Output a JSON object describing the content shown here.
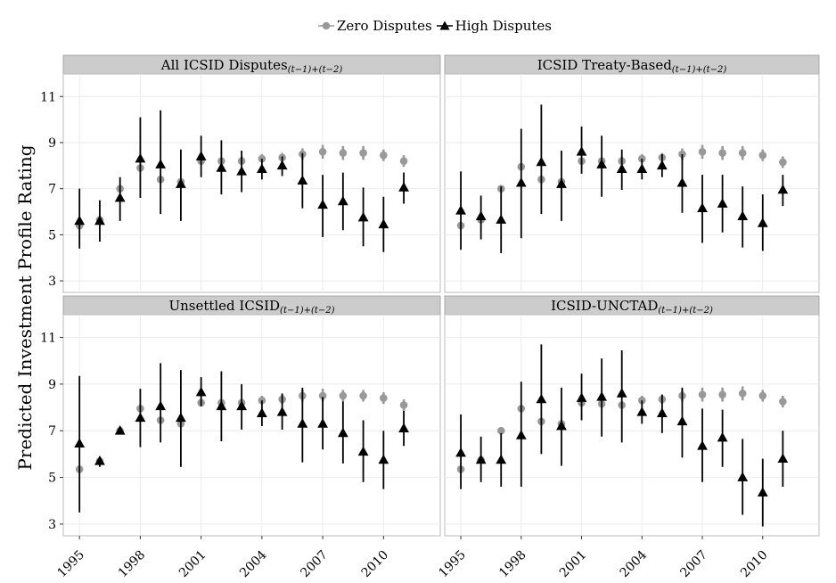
{
  "legend": {
    "zero_label": "Zero Disputes",
    "high_label": "High Disputes"
  },
  "colors": {
    "zero": "#999999",
    "high": "#000000",
    "strip_bg": "#cccccc",
    "panel_border": "#bbbbbb",
    "grid": "#ebebeb"
  },
  "ylabel": "Predicted Investment Profile Rating",
  "chart_data": {
    "type": "scatter",
    "ylim": [
      2.5,
      11.9
    ],
    "y_ticks": [
      3,
      5,
      7,
      9,
      11
    ],
    "x_range": [
      1994.2,
      2012.8
    ],
    "x_ticks": [
      1995,
      1998,
      2001,
      2004,
      2007,
      2010
    ],
    "grid": true,
    "legend_position": "top",
    "panels": [
      {
        "title": "All ICSID Disputes",
        "subscript": "(t−1)+(t−2)",
        "series": [
          {
            "name": "Zero Disputes",
            "x": [
              1995,
              1996,
              1997,
              1998,
              1999,
              2000,
              2001,
              2002,
              2003,
              2004,
              2005,
              2006,
              2007,
              2008,
              2009,
              2010,
              2011
            ],
            "y": [
              5.4,
              5.65,
              7.0,
              7.9,
              7.4,
              7.3,
              8.2,
              8.2,
              8.2,
              8.3,
              8.35,
              8.5,
              8.6,
              8.55,
              8.55,
              8.45,
              8.2
            ],
            "low": [
              5.3,
              5.55,
              6.85,
              7.75,
              7.25,
              7.15,
              8.05,
              8.05,
              8.05,
              8.15,
              8.15,
              8.25,
              8.3,
              8.25,
              8.25,
              8.2,
              7.95
            ],
            "high": [
              5.5,
              5.75,
              7.15,
              8.05,
              7.55,
              7.45,
              8.35,
              8.35,
              8.4,
              8.5,
              8.55,
              8.75,
              8.9,
              8.85,
              8.85,
              8.7,
              8.45
            ]
          },
          {
            "name": "High Disputes",
            "x": [
              1995,
              1996,
              1997,
              1998,
              1999,
              2000,
              2001,
              2002,
              2003,
              2004,
              2005,
              2006,
              2007,
              2008,
              2009,
              2010,
              2011
            ],
            "y": [
              5.6,
              5.6,
              6.6,
              8.3,
              8.05,
              7.2,
              8.4,
              7.9,
              7.75,
              7.85,
              8.0,
              7.35,
              6.3,
              6.45,
              5.75,
              5.45,
              7.05
            ],
            "low": [
              4.4,
              4.7,
              5.6,
              6.6,
              5.9,
              5.6,
              7.5,
              6.75,
              6.85,
              7.4,
              7.55,
              6.15,
              4.9,
              5.2,
              4.5,
              4.25,
              6.35
            ],
            "high": [
              7.0,
              6.5,
              7.5,
              10.1,
              10.4,
              8.7,
              9.3,
              9.1,
              8.65,
              8.3,
              8.4,
              8.55,
              7.6,
              7.7,
              7.05,
              6.65,
              7.7
            ]
          }
        ]
      },
      {
        "title": "ICSID Treaty-Based",
        "subscript": "(t−1)+(t−2)",
        "series": [
          {
            "name": "Zero Disputes",
            "x": [
              1995,
              1996,
              1997,
              1998,
              1999,
              2000,
              2001,
              2002,
              2003,
              2004,
              2005,
              2006,
              2007,
              2008,
              2009,
              2010,
              2011
            ],
            "y": [
              5.4,
              5.65,
              7.0,
              7.95,
              7.4,
              7.3,
              8.2,
              8.2,
              8.2,
              8.3,
              8.35,
              8.5,
              8.6,
              8.55,
              8.55,
              8.45,
              8.15
            ],
            "low": [
              5.3,
              5.55,
              6.85,
              7.8,
              7.25,
              7.15,
              8.05,
              8.05,
              8.05,
              8.15,
              8.15,
              8.25,
              8.3,
              8.25,
              8.25,
              8.2,
              7.9
            ],
            "high": [
              5.5,
              5.75,
              7.15,
              8.1,
              7.55,
              7.45,
              8.35,
              8.35,
              8.4,
              8.5,
              8.55,
              8.75,
              8.9,
              8.85,
              8.85,
              8.7,
              8.4
            ]
          },
          {
            "name": "High Disputes",
            "x": [
              1995,
              1996,
              1997,
              1998,
              1999,
              2000,
              2001,
              2002,
              2003,
              2004,
              2005,
              2006,
              2007,
              2008,
              2009,
              2010,
              2011
            ],
            "y": [
              6.05,
              5.8,
              5.65,
              7.25,
              8.15,
              7.2,
              8.6,
              8.05,
              7.85,
              7.85,
              8.0,
              7.25,
              6.15,
              6.35,
              5.8,
              5.5,
              6.95
            ],
            "low": [
              4.35,
              4.8,
              4.2,
              4.85,
              5.9,
              5.6,
              7.65,
              6.65,
              6.95,
              7.4,
              7.5,
              5.95,
              4.65,
              5.1,
              4.45,
              4.3,
              6.25
            ],
            "high": [
              7.75,
              6.7,
              7.1,
              9.6,
              10.65,
              8.65,
              9.7,
              9.3,
              8.7,
              8.3,
              8.5,
              8.5,
              7.6,
              7.6,
              7.1,
              6.75,
              7.6
            ]
          }
        ]
      },
      {
        "title": "Unsettled ICSID",
        "subscript": "(t−1)+(t−2)",
        "series": [
          {
            "name": "Zero Disputes",
            "x": [
              1995,
              1996,
              1997,
              1998,
              1999,
              2000,
              2001,
              2002,
              2003,
              2004,
              2005,
              2006,
              2007,
              2008,
              2009,
              2010,
              2011
            ],
            "y": [
              5.35,
              5.7,
              7.0,
              7.95,
              7.45,
              7.3,
              8.2,
              8.2,
              8.2,
              8.3,
              8.35,
              8.5,
              8.5,
              8.5,
              8.5,
              8.4,
              8.1
            ],
            "low": [
              5.25,
              5.6,
              6.85,
              7.8,
              7.3,
              7.15,
              8.05,
              8.05,
              8.05,
              8.15,
              8.15,
              8.25,
              8.25,
              8.25,
              8.25,
              8.15,
              7.85
            ],
            "high": [
              5.45,
              5.8,
              7.15,
              8.1,
              7.6,
              7.45,
              8.35,
              8.35,
              8.35,
              8.5,
              8.55,
              8.75,
              8.8,
              8.75,
              8.75,
              8.65,
              8.35
            ]
          },
          {
            "name": "High Disputes",
            "x": [
              1995,
              1996,
              1997,
              1998,
              1999,
              2000,
              2001,
              2002,
              2003,
              2004,
              2005,
              2006,
              2007,
              2008,
              2009,
              2010,
              2011
            ],
            "y": [
              6.45,
              5.7,
              7.0,
              7.55,
              8.05,
              7.55,
              8.65,
              8.05,
              8.05,
              7.75,
              7.8,
              7.3,
              7.3,
              6.9,
              6.1,
              5.75,
              7.1
            ],
            "low": [
              3.5,
              5.45,
              6.85,
              6.3,
              6.5,
              5.45,
              8.05,
              6.55,
              7.05,
              7.2,
              7.05,
              5.65,
              6.2,
              5.6,
              4.8,
              4.5,
              6.35
            ],
            "high": [
              9.35,
              5.9,
              7.15,
              8.8,
              9.9,
              9.6,
              9.3,
              9.55,
              9.0,
              8.3,
              8.6,
              8.85,
              8.45,
              8.25,
              7.45,
              7.0,
              7.85
            ]
          }
        ]
      },
      {
        "title": "ICSID-UNCTAD",
        "subscript": "(t−1)+(t−2)",
        "series": [
          {
            "name": "Zero Disputes",
            "x": [
              1995,
              1996,
              1997,
              1998,
              1999,
              2000,
              2001,
              2002,
              2003,
              2004,
              2005,
              2006,
              2007,
              2008,
              2009,
              2010,
              2011
            ],
            "y": [
              5.35,
              5.75,
              7.0,
              7.95,
              7.4,
              7.3,
              8.2,
              8.15,
              8.1,
              8.3,
              8.35,
              8.5,
              8.55,
              8.55,
              8.6,
              8.5,
              8.25
            ],
            "low": [
              5.25,
              5.65,
              6.85,
              7.8,
              7.25,
              7.15,
              8.05,
              8.0,
              7.95,
              8.15,
              8.15,
              8.25,
              8.25,
              8.25,
              8.3,
              8.25,
              8.0
            ],
            "high": [
              5.45,
              5.85,
              7.15,
              8.1,
              7.55,
              7.45,
              8.35,
              8.3,
              8.25,
              8.5,
              8.55,
              8.75,
              8.85,
              8.85,
              8.9,
              8.75,
              8.5
            ]
          },
          {
            "name": "High Disputes",
            "x": [
              1995,
              1996,
              1997,
              1998,
              1999,
              2000,
              2001,
              2002,
              2003,
              2004,
              2005,
              2006,
              2007,
              2008,
              2009,
              2010,
              2011
            ],
            "y": [
              6.05,
              5.75,
              5.75,
              6.8,
              8.35,
              7.2,
              8.4,
              8.45,
              8.6,
              7.8,
              7.75,
              7.4,
              6.35,
              6.7,
              5.0,
              4.35,
              5.8
            ],
            "low": [
              4.5,
              4.8,
              4.6,
              4.6,
              6.0,
              5.5,
              7.45,
              6.75,
              6.5,
              7.3,
              6.9,
              5.85,
              4.8,
              5.45,
              3.4,
              2.9,
              4.6
            ],
            "high": [
              7.7,
              6.75,
              6.9,
              9.1,
              10.7,
              8.85,
              9.45,
              10.1,
              10.45,
              8.3,
              8.55,
              8.85,
              7.95,
              7.9,
              6.65,
              5.8,
              7.0
            ]
          }
        ]
      }
    ]
  }
}
